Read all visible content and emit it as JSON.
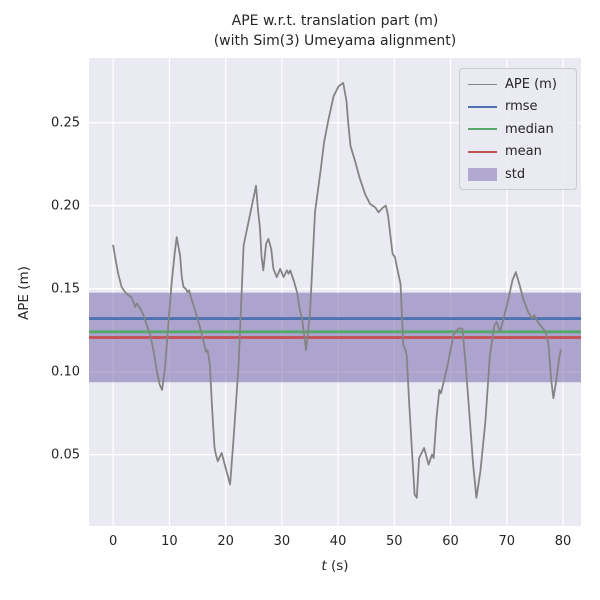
{
  "chart_data": {
    "type": "line",
    "title_line1": "APE w.r.t. translation part (m)",
    "title_line2": "(with Sim(3) Umeyama alignment)",
    "xlabel_main": "t",
    "xlabel_unit": " (s)",
    "ylabel": "APE (m)",
    "xlim": [
      -4.3,
      83.2
    ],
    "ylim": [
      0.007,
      0.289
    ],
    "grid": true,
    "xticks": [
      0,
      10,
      20,
      30,
      40,
      50,
      60,
      70,
      80
    ],
    "xtick_labels": [
      "0",
      "10",
      "20",
      "30",
      "40",
      "50",
      "60",
      "70",
      "80"
    ],
    "yticks": [
      0.05,
      0.1,
      0.15,
      0.2,
      0.25
    ],
    "ytick_labels": [
      "0.05",
      "0.10",
      "0.15",
      "0.20",
      "0.25"
    ],
    "colors": {
      "plot_background": "#eaeaf2",
      "grid": "#ffffff",
      "ape_line": "#848484",
      "rmse": "#4c72b0",
      "median": "#55a868",
      "mean": "#c44e52",
      "std": "#8172b2",
      "text": "#262626"
    },
    "stats_lines": [
      {
        "name": "rmse",
        "value": 0.132,
        "color": "#4c72b0"
      },
      {
        "name": "median",
        "value": 0.124,
        "color": "#55a868"
      },
      {
        "name": "mean",
        "value": 0.1206,
        "color": "#c44e52"
      }
    ],
    "std_band": {
      "name": "std",
      "lower": 0.0936,
      "upper": 0.1476,
      "color": "#8172b2",
      "opacity": 0.58
    },
    "legend": {
      "position": "upper right",
      "items": [
        {
          "label": "APE (m)",
          "color": "#848484",
          "type": "line",
          "weight": 1.8
        },
        {
          "label": "rmse",
          "color": "#4c72b0",
          "type": "line",
          "weight": 2.8
        },
        {
          "label": "median",
          "color": "#55a868",
          "type": "line",
          "weight": 2.8
        },
        {
          "label": "mean",
          "color": "#c44e52",
          "type": "line",
          "weight": 2.8
        },
        {
          "label": "std",
          "color": "#8172b2",
          "type": "patch",
          "weight": 0
        }
      ]
    },
    "series": [
      {
        "name": "APE (m)",
        "color": "#848484",
        "points": [
          [
            0.0,
            0.176
          ],
          [
            0.4,
            0.168
          ],
          [
            0.9,
            0.159
          ],
          [
            1.5,
            0.151
          ],
          [
            2.1,
            0.148
          ],
          [
            2.7,
            0.146
          ],
          [
            3.2,
            0.145
          ],
          [
            3.6,
            0.142
          ],
          [
            3.9,
            0.139
          ],
          [
            4.2,
            0.141
          ],
          [
            4.8,
            0.138
          ],
          [
            5.4,
            0.134
          ],
          [
            6.0,
            0.128
          ],
          [
            6.6,
            0.122
          ],
          [
            7.2,
            0.112
          ],
          [
            7.8,
            0.1
          ],
          [
            8.3,
            0.092
          ],
          [
            8.7,
            0.089
          ],
          [
            9.2,
            0.102
          ],
          [
            9.8,
            0.128
          ],
          [
            10.4,
            0.154
          ],
          [
            11.0,
            0.173
          ],
          [
            11.3,
            0.181
          ],
          [
            11.9,
            0.17
          ],
          [
            12.2,
            0.157
          ],
          [
            12.5,
            0.151
          ],
          [
            12.9,
            0.15
          ],
          [
            13.2,
            0.148
          ],
          [
            13.5,
            0.149
          ],
          [
            13.8,
            0.145
          ],
          [
            14.3,
            0.14
          ],
          [
            14.9,
            0.133
          ],
          [
            15.5,
            0.126
          ],
          [
            16.0,
            0.119
          ],
          [
            16.5,
            0.112
          ],
          [
            16.8,
            0.113
          ],
          [
            17.2,
            0.104
          ],
          [
            17.6,
            0.078
          ],
          [
            18.0,
            0.055
          ],
          [
            18.2,
            0.051
          ],
          [
            18.6,
            0.046
          ],
          [
            19.0,
            0.049
          ],
          [
            19.3,
            0.051
          ],
          [
            20.0,
            0.042
          ],
          [
            20.4,
            0.037
          ],
          [
            20.8,
            0.032
          ],
          [
            21.4,
            0.059
          ],
          [
            22.3,
            0.104
          ],
          [
            23.2,
            0.176
          ],
          [
            24.3,
            0.194
          ],
          [
            25.4,
            0.212
          ],
          [
            25.8,
            0.196
          ],
          [
            26.1,
            0.187
          ],
          [
            26.4,
            0.169
          ],
          [
            26.7,
            0.161
          ],
          [
            27.2,
            0.177
          ],
          [
            27.6,
            0.18
          ],
          [
            28.1,
            0.174
          ],
          [
            28.5,
            0.162
          ],
          [
            29.1,
            0.157
          ],
          [
            29.7,
            0.162
          ],
          [
            30.3,
            0.157
          ],
          [
            30.9,
            0.161
          ],
          [
            31.2,
            0.159
          ],
          [
            31.5,
            0.161
          ],
          [
            32.1,
            0.155
          ],
          [
            32.7,
            0.148
          ],
          [
            33.2,
            0.137
          ],
          [
            33.6,
            0.132
          ],
          [
            34.3,
            0.113
          ],
          [
            35.0,
            0.135
          ],
          [
            35.9,
            0.196
          ],
          [
            37.0,
            0.224
          ],
          [
            37.5,
            0.238
          ],
          [
            38.3,
            0.252
          ],
          [
            39.2,
            0.266
          ],
          [
            40.1,
            0.272
          ],
          [
            40.9,
            0.274
          ],
          [
            41.5,
            0.263
          ],
          [
            41.8,
            0.25
          ],
          [
            42.2,
            0.236
          ],
          [
            43.0,
            0.227
          ],
          [
            43.9,
            0.216
          ],
          [
            44.8,
            0.207
          ],
          [
            45.7,
            0.201
          ],
          [
            46.6,
            0.199
          ],
          [
            47.2,
            0.196
          ],
          [
            48.0,
            0.199
          ],
          [
            48.5,
            0.2
          ],
          [
            48.9,
            0.194
          ],
          [
            49.3,
            0.182
          ],
          [
            49.7,
            0.171
          ],
          [
            50.1,
            0.169
          ],
          [
            50.7,
            0.159
          ],
          [
            51.1,
            0.153
          ],
          [
            51.6,
            0.116
          ],
          [
            51.9,
            0.114
          ],
          [
            52.2,
            0.11
          ],
          [
            52.6,
            0.084
          ],
          [
            53.1,
            0.054
          ],
          [
            53.6,
            0.026
          ],
          [
            54.0,
            0.024
          ],
          [
            54.4,
            0.048
          ],
          [
            55.3,
            0.054
          ],
          [
            56.1,
            0.044
          ],
          [
            56.7,
            0.05
          ],
          [
            57.0,
            0.048
          ],
          [
            57.5,
            0.072
          ],
          [
            58.0,
            0.089
          ],
          [
            58.3,
            0.087
          ],
          [
            58.8,
            0.094
          ],
          [
            59.6,
            0.106
          ],
          [
            60.5,
            0.122
          ],
          [
            61.4,
            0.126
          ],
          [
            62.1,
            0.126
          ],
          [
            62.7,
            0.104
          ],
          [
            63.3,
            0.077
          ],
          [
            64.0,
            0.045
          ],
          [
            64.6,
            0.024
          ],
          [
            65.3,
            0.04
          ],
          [
            66.2,
            0.07
          ],
          [
            67.0,
            0.11
          ],
          [
            67.8,
            0.128
          ],
          [
            68.2,
            0.13
          ],
          [
            68.8,
            0.124
          ],
          [
            69.5,
            0.133
          ],
          [
            70.3,
            0.144
          ],
          [
            71.0,
            0.155
          ],
          [
            71.6,
            0.16
          ],
          [
            72.3,
            0.152
          ],
          [
            72.9,
            0.144
          ],
          [
            73.8,
            0.136
          ],
          [
            74.5,
            0.132
          ],
          [
            74.9,
            0.134
          ],
          [
            75.3,
            0.131
          ],
          [
            76.2,
            0.127
          ],
          [
            76.9,
            0.124
          ],
          [
            77.4,
            0.117
          ],
          [
            77.9,
            0.095
          ],
          [
            78.3,
            0.084
          ],
          [
            78.8,
            0.095
          ],
          [
            79.3,
            0.108
          ],
          [
            79.6,
            0.113
          ]
        ]
      }
    ]
  }
}
